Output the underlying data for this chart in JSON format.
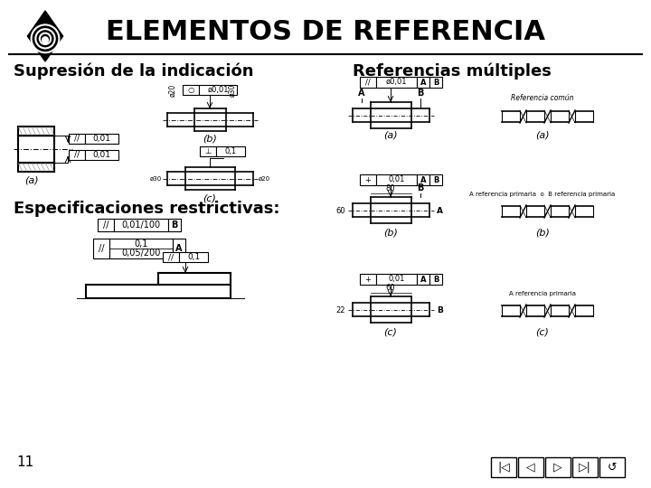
{
  "title": "ELEMENTOS DE REFERENCIA",
  "subtitle_left": "Supresión de la indicación",
  "subtitle_right": "Referencias múltiples",
  "subtitle_left2": "Especificaciones restrictivas:",
  "page_number": "11",
  "bg_color": "#ffffff",
  "text_color": "#000000",
  "title_fontsize": 22,
  "subtitle_fontsize": 13,
  "nav_btn_labels": [
    "|<",
    "<",
    ">",
    ">|",
    "U"
  ]
}
